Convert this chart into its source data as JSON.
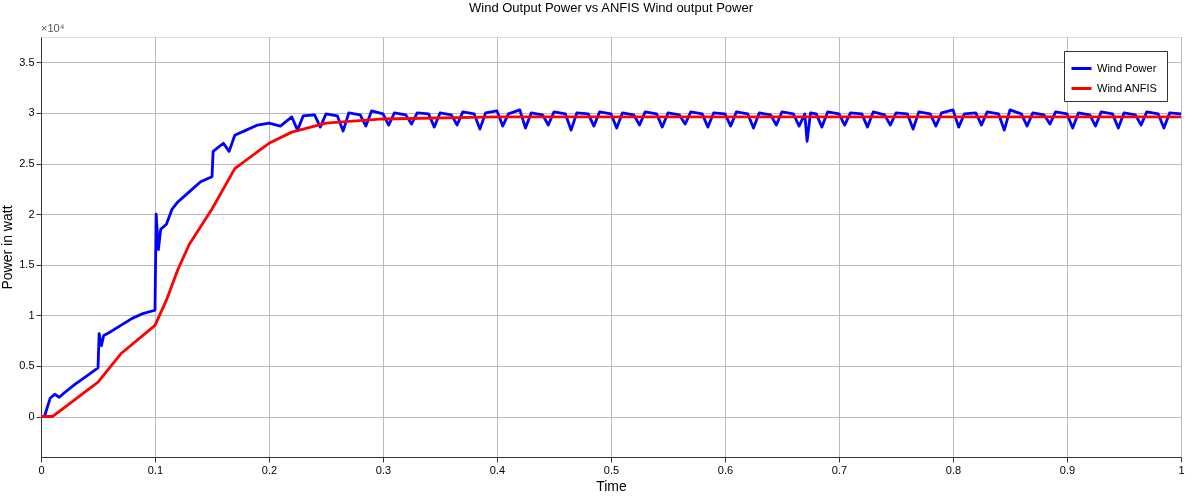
{
  "chart_data": {
    "type": "line",
    "title": "Wind Output Power vs  ANFIS Wind output Power",
    "xlabel": "Time",
    "ylabel": "Power in watt",
    "annotations": [
      "×10⁴"
    ],
    "xlim": [
      0,
      1
    ],
    "xticks": [
      0,
      0.1,
      0.2,
      0.3,
      0.4,
      0.5,
      0.6,
      0.7,
      0.8,
      0.9,
      1
    ],
    "ylim": [
      -0.4,
      3.75
    ],
    "yticks": [
      0,
      0.5,
      1,
      1.5,
      2,
      2.5,
      3,
      3.5
    ],
    "grid": true,
    "legend": "top right",
    "line_style": "solid",
    "marker": "none",
    "series": [
      {
        "name": "Wind  Power",
        "color": "#0000ff",
        "x": [
          0,
          0.003,
          0.008,
          0.012,
          0.016,
          0.02,
          0.03,
          0.04,
          0.05,
          0.051,
          0.053,
          0.055,
          0.06,
          0.07,
          0.08,
          0.09,
          0.1,
          0.101,
          0.103,
          0.105,
          0.11,
          0.115,
          0.12,
          0.13,
          0.14,
          0.15,
          0.151,
          0.16,
          0.165,
          0.17,
          0.18,
          0.19,
          0.2,
          0.21,
          0.22,
          0.225,
          0.23,
          0.24,
          0.245,
          0.25,
          0.26,
          0.265,
          0.27,
          0.28,
          0.285,
          0.29,
          0.3,
          0.305,
          0.31,
          0.32,
          0.325,
          0.33,
          0.34,
          0.345,
          0.35,
          0.36,
          0.365,
          0.37,
          0.38,
          0.385,
          0.39,
          0.4,
          0.405,
          0.41,
          0.42,
          0.425,
          0.43,
          0.44,
          0.445,
          0.45,
          0.46,
          0.465,
          0.47,
          0.48,
          0.485,
          0.49,
          0.5,
          0.505,
          0.51,
          0.52,
          0.525,
          0.53,
          0.54,
          0.545,
          0.55,
          0.56,
          0.565,
          0.57,
          0.58,
          0.585,
          0.59,
          0.6,
          0.605,
          0.61,
          0.62,
          0.625,
          0.63,
          0.64,
          0.645,
          0.65,
          0.66,
          0.665,
          0.67,
          0.672,
          0.675,
          0.68,
          0.685,
          0.69,
          0.7,
          0.705,
          0.71,
          0.72,
          0.725,
          0.73,
          0.74,
          0.745,
          0.75,
          0.76,
          0.765,
          0.77,
          0.78,
          0.785,
          0.79,
          0.8,
          0.805,
          0.81,
          0.82,
          0.825,
          0.83,
          0.84,
          0.845,
          0.85,
          0.86,
          0.865,
          0.87,
          0.88,
          0.885,
          0.89,
          0.9,
          0.905,
          0.91,
          0.92,
          0.925,
          0.93,
          0.94,
          0.945,
          0.95,
          0.96,
          0.965,
          0.97,
          0.98,
          0.985,
          0.99,
          1.0
        ],
        "values": [
          0,
          0,
          0.18,
          0.22,
          0.19,
          0.23,
          0.32,
          0.4,
          0.48,
          0.82,
          0.7,
          0.8,
          0.83,
          0.9,
          0.97,
          1.02,
          1.05,
          2.0,
          1.65,
          1.85,
          1.9,
          2.05,
          2.12,
          2.22,
          2.32,
          2.37,
          2.62,
          2.7,
          2.62,
          2.78,
          2.83,
          2.88,
          2.9,
          2.87,
          2.96,
          2.83,
          2.97,
          2.98,
          2.86,
          2.99,
          2.97,
          2.82,
          3.0,
          2.98,
          2.87,
          3.02,
          2.99,
          2.88,
          3.0,
          2.98,
          2.89,
          3.0,
          2.99,
          2.86,
          3.0,
          2.98,
          2.88,
          3.01,
          2.99,
          2.84,
          3.0,
          3.02,
          2.87,
          2.99,
          3.03,
          2.85,
          3.0,
          2.98,
          2.88,
          3.01,
          2.99,
          2.83,
          3.0,
          2.99,
          2.87,
          3.01,
          2.99,
          2.85,
          3.0,
          2.98,
          2.88,
          3.01,
          2.99,
          2.86,
          3.0,
          2.98,
          2.89,
          3.01,
          2.99,
          2.86,
          3.0,
          2.99,
          2.87,
          3.01,
          2.99,
          2.85,
          3.0,
          2.98,
          2.88,
          3.01,
          2.99,
          2.87,
          2.99,
          2.72,
          3.0,
          2.99,
          2.86,
          3.01,
          2.99,
          2.88,
          3.0,
          2.99,
          2.86,
          3.01,
          2.98,
          2.88,
          3.0,
          2.99,
          2.84,
          3.01,
          2.99,
          2.87,
          3.0,
          3.03,
          2.86,
          2.99,
          3.0,
          2.88,
          3.01,
          2.99,
          2.83,
          3.03,
          2.99,
          2.87,
          3.0,
          2.98,
          2.89,
          3.01,
          2.99,
          2.85,
          3.0,
          2.98,
          2.87,
          3.01,
          2.99,
          2.85,
          3.0,
          2.98,
          2.88,
          3.01,
          2.99,
          2.85,
          3.0,
          2.99
        ]
      },
      {
        "name": "Wind  ANFIS",
        "color": "#ff0000",
        "x": [
          0,
          0.01,
          0.03,
          0.05,
          0.07,
          0.1,
          0.11,
          0.12,
          0.13,
          0.15,
          0.17,
          0.2,
          0.22,
          0.25,
          0.3,
          0.4,
          0.5,
          1.0
        ],
        "values": [
          0,
          0,
          0.17,
          0.34,
          0.62,
          0.9,
          1.15,
          1.45,
          1.7,
          2.05,
          2.45,
          2.7,
          2.81,
          2.9,
          2.94,
          2.96,
          2.96,
          2.96
        ]
      }
    ]
  }
}
